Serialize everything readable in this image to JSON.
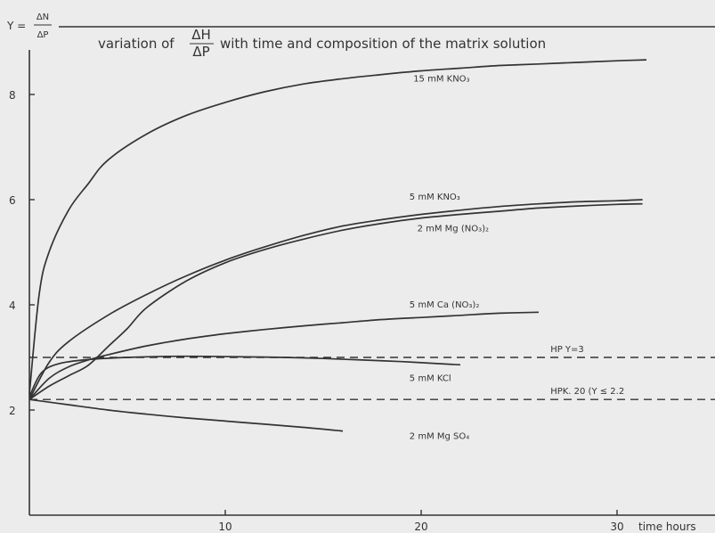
{
  "chart_data": {
    "type": "line",
    "title_prefix": "variation of",
    "title_fraction": {
      "numerator": "ΔH",
      "denominator": "ΔP"
    },
    "title_suffix": "with time and composition of the matrix solution",
    "ylabel": {
      "prefix": "Y =",
      "numerator": "ΔN",
      "denominator": "ΔP"
    },
    "xlabel": "time hours",
    "xlim": [
      0,
      32
    ],
    "ylim": [
      0,
      9
    ],
    "x_ticks": [
      10,
      20,
      30
    ],
    "y_ticks": [
      2,
      4,
      6,
      8
    ],
    "grid": false,
    "legend": "none",
    "series": [
      {
        "name": "15 mM KNO₃",
        "label_at": [
          19.6,
          8.25
        ],
        "points": [
          [
            0,
            2.3
          ],
          [
            0.5,
            4.2
          ],
          [
            1,
            5.0
          ],
          [
            2,
            5.8
          ],
          [
            3,
            6.3
          ],
          [
            4,
            6.75
          ],
          [
            6,
            7.25
          ],
          [
            8,
            7.6
          ],
          [
            10,
            7.85
          ],
          [
            12,
            8.05
          ],
          [
            14,
            8.2
          ],
          [
            16,
            8.3
          ],
          [
            18,
            8.38
          ],
          [
            20,
            8.45
          ],
          [
            22,
            8.5
          ],
          [
            24,
            8.55
          ],
          [
            26,
            8.58
          ],
          [
            28,
            8.61
          ],
          [
            30,
            8.64
          ],
          [
            31.5,
            8.66
          ]
        ]
      },
      {
        "name": "5 mM KNO₃",
        "label_at": [
          19.4,
          6.0
        ],
        "points": [
          [
            0,
            2.2
          ],
          [
            1,
            2.9
          ],
          [
            2,
            3.3
          ],
          [
            4,
            3.8
          ],
          [
            6,
            4.2
          ],
          [
            8,
            4.55
          ],
          [
            10,
            4.85
          ],
          [
            12,
            5.1
          ],
          [
            14,
            5.32
          ],
          [
            16,
            5.5
          ],
          [
            18,
            5.62
          ],
          [
            20,
            5.72
          ],
          [
            22,
            5.8
          ],
          [
            24,
            5.87
          ],
          [
            26,
            5.92
          ],
          [
            28,
            5.96
          ],
          [
            30,
            5.98
          ],
          [
            31.3,
            6.0
          ]
        ]
      },
      {
        "name": "2 mM Mg (NO₃)₂",
        "label_at": [
          19.8,
          5.4
        ],
        "points": [
          [
            0,
            2.2
          ],
          [
            1,
            2.45
          ],
          [
            2,
            2.65
          ],
          [
            3,
            2.85
          ],
          [
            4,
            3.2
          ],
          [
            5,
            3.55
          ],
          [
            6,
            3.95
          ],
          [
            8,
            4.45
          ],
          [
            10,
            4.8
          ],
          [
            12,
            5.05
          ],
          [
            14,
            5.25
          ],
          [
            16,
            5.42
          ],
          [
            18,
            5.55
          ],
          [
            20,
            5.65
          ],
          [
            22,
            5.72
          ],
          [
            24,
            5.78
          ],
          [
            26,
            5.84
          ],
          [
            28,
            5.88
          ],
          [
            30,
            5.91
          ],
          [
            31.3,
            5.92
          ]
        ]
      },
      {
        "name": "5 mM Ca (NO₃)₂",
        "label_at": [
          19.4,
          3.95
        ],
        "points": [
          [
            0,
            2.2
          ],
          [
            1,
            2.6
          ],
          [
            2,
            2.82
          ],
          [
            3,
            2.95
          ],
          [
            4,
            3.05
          ],
          [
            6,
            3.22
          ],
          [
            8,
            3.35
          ],
          [
            10,
            3.45
          ],
          [
            12,
            3.53
          ],
          [
            14,
            3.6
          ],
          [
            16,
            3.66
          ],
          [
            18,
            3.72
          ],
          [
            20,
            3.76
          ],
          [
            22,
            3.8
          ],
          [
            24,
            3.84
          ],
          [
            26,
            3.86
          ]
        ]
      },
      {
        "name": "5 mM KCl",
        "label_at": [
          19.4,
          2.55
        ],
        "points": [
          [
            0,
            2.25
          ],
          [
            0.6,
            2.7
          ],
          [
            1.5,
            2.88
          ],
          [
            3,
            2.96
          ],
          [
            5,
            3.0
          ],
          [
            7,
            3.02
          ],
          [
            9,
            3.02
          ],
          [
            11,
            3.01
          ],
          [
            13,
            3.0
          ],
          [
            15,
            2.98
          ],
          [
            17,
            2.95
          ],
          [
            19,
            2.92
          ],
          [
            21,
            2.88
          ],
          [
            22,
            2.86
          ]
        ]
      },
      {
        "name": "2 mM Mg SO₄",
        "label_at": [
          19.4,
          1.45
        ],
        "points": [
          [
            0,
            2.2
          ],
          [
            2,
            2.1
          ],
          [
            4,
            2.0
          ],
          [
            6,
            1.92
          ],
          [
            8,
            1.85
          ],
          [
            10,
            1.79
          ],
          [
            12,
            1.73
          ],
          [
            14,
            1.67
          ],
          [
            16,
            1.6
          ]
        ]
      }
    ],
    "reference_lines": [
      {
        "y": 3.0,
        "label": "HP    Y=3",
        "label_x": 26.6
      },
      {
        "y": 2.2,
        "label": "HPK. 20 (Y ≤ 2.2",
        "label_x": 26.6
      }
    ]
  }
}
